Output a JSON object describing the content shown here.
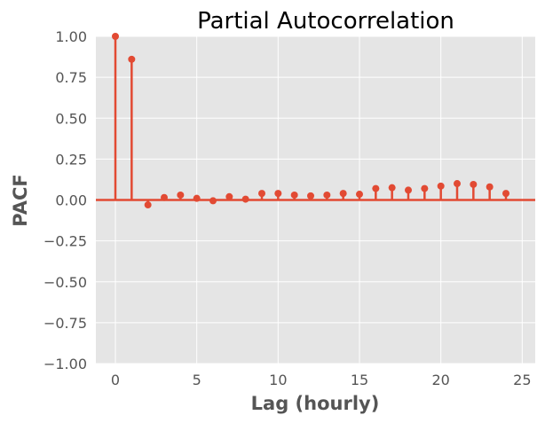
{
  "chart_data": {
    "type": "stem",
    "title": "Partial Autocorrelation",
    "xlabel": "Lag (hourly)",
    "ylabel": "PACF",
    "xlim": [
      -1.2,
      25.8
    ],
    "ylim": [
      -1.0,
      1.0
    ],
    "x_ticks": [
      0,
      5,
      10,
      15,
      20,
      25
    ],
    "y_ticks": [
      -1.0,
      -0.75,
      -0.5,
      -0.25,
      0.0,
      0.25,
      0.5,
      0.75,
      1.0
    ],
    "y_tick_labels": [
      "−1.00",
      "−0.75",
      "−0.50",
      "−0.25",
      "0.00",
      "0.25",
      "0.50",
      "0.75",
      "1.00"
    ],
    "x_tick_labels": [
      "0",
      "5",
      "10",
      "15",
      "20",
      "25"
    ],
    "grid": true,
    "lags": [
      0,
      1,
      2,
      3,
      4,
      5,
      6,
      7,
      8,
      9,
      10,
      11,
      12,
      13,
      14,
      15,
      16,
      17,
      18,
      19,
      20,
      21,
      22,
      23,
      24
    ],
    "values": [
      1.0,
      0.86,
      -0.03,
      0.015,
      0.03,
      0.01,
      -0.005,
      0.02,
      0.005,
      0.04,
      0.04,
      0.03,
      0.025,
      0.03,
      0.04,
      0.035,
      0.07,
      0.075,
      0.06,
      0.07,
      0.085,
      0.1,
      0.095,
      0.08,
      0.04
    ],
    "colors": {
      "stem": "#E24A33",
      "plot_background": "#E5E5E5",
      "grid": "#FFFFFF",
      "tick_text": "#555555"
    }
  }
}
